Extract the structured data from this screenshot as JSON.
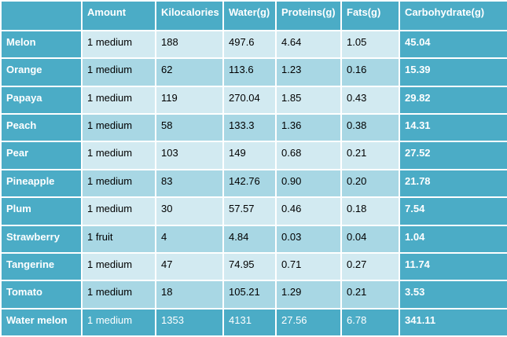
{
  "table": {
    "columns": [
      "Amount",
      "Kilocalories",
      "Water(g)",
      "Proteins(g)",
      "Fats(g)",
      "Carbohydrate(g)"
    ],
    "rows": [
      [
        "Melon",
        "1 medium",
        "188",
        "497.6",
        "4.64",
        "1.05",
        "45.04"
      ],
      [
        "Orange",
        "1 medium",
        "62",
        "113.6",
        "1.23",
        "0.16",
        "15.39"
      ],
      [
        "Papaya",
        "1 medium",
        "119",
        "270.04",
        "1.85",
        "0.43",
        "29.82"
      ],
      [
        "Peach",
        "1 medium",
        "58",
        "133.3",
        "1.36",
        "0.38",
        "14.31"
      ],
      [
        "Pear",
        "1 medium",
        "103",
        "149",
        "0.68",
        "0.21",
        "27.52"
      ],
      [
        "Pineapple",
        "1 medium",
        "83",
        "142.76",
        "0.90",
        "0.20",
        "21.78"
      ],
      [
        "Plum",
        "1 medium",
        "30",
        "57.57",
        "0.46",
        "0.18",
        "7.54"
      ],
      [
        "Strawberry",
        "1 fruit",
        "4",
        "4.84",
        "0.03",
        "0.04",
        "1.04"
      ],
      [
        "Tangerine",
        "1 medium",
        "47",
        "74.95",
        "0.71",
        "0.27",
        "11.74"
      ],
      [
        "Tomato",
        "1 medium",
        "18",
        "105.21",
        "1.29",
        "0.21",
        "3.53"
      ],
      [
        "Water melon",
        "1 medium",
        "1353",
        "4131",
        "27.56",
        "6.78",
        "341.11"
      ]
    ]
  }
}
